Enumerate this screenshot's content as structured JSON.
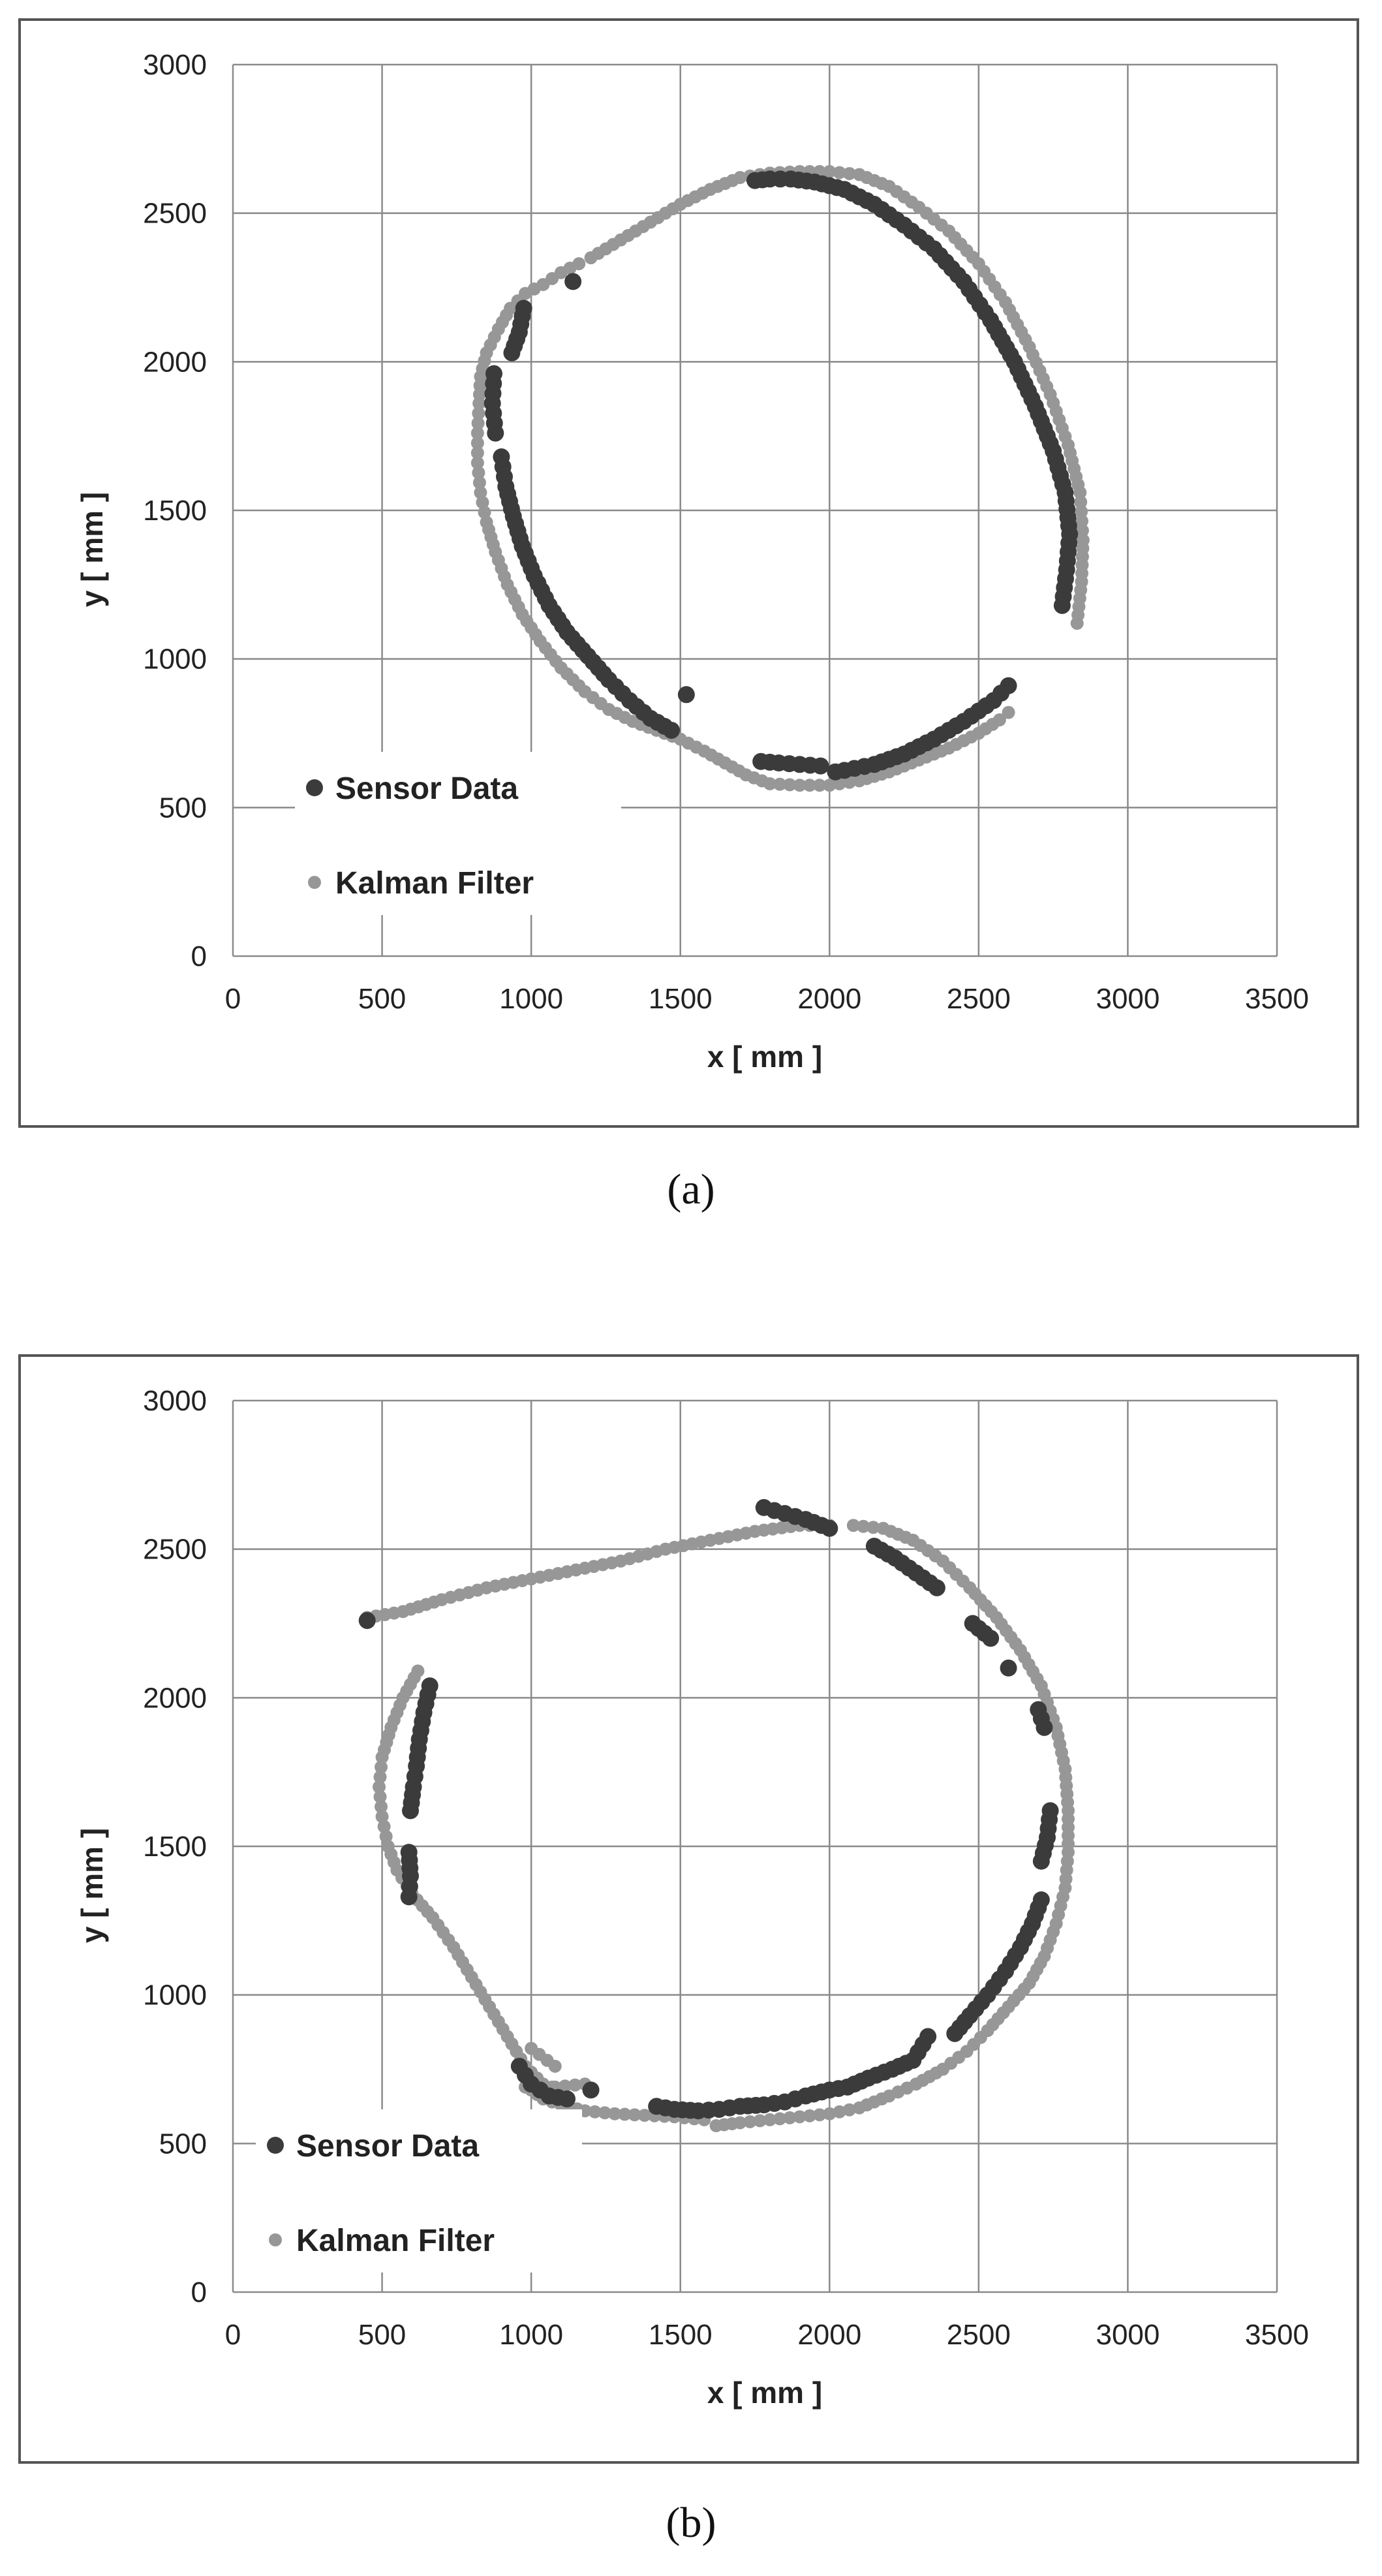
{
  "captions": {
    "a": "(a)",
    "b": "(b)"
  },
  "colors": {
    "sensor": "#3b3b3b",
    "kalman": "#979797",
    "grid": "#8a8a8a",
    "frame": "#555555"
  },
  "chart_data": [
    {
      "type": "scatter",
      "id": "a",
      "xlabel": "x [ mm ]",
      "ylabel": "y [ mm ]",
      "xlim": [
        0,
        3500
      ],
      "ylim": [
        0,
        3000
      ],
      "xticks": [
        0,
        500,
        1000,
        1500,
        2000,
        2500,
        3000,
        3500
      ],
      "yticks": [
        0,
        500,
        1000,
        1500,
        2000,
        2500,
        3000
      ],
      "grid": true,
      "legend": "bottom-left",
      "series": [
        {
          "name": "Sensor Data",
          "segments": [
            [
              [
                1750,
                2610
              ],
              [
                1800,
                2615
              ],
              [
                1870,
                2615
              ],
              [
                1950,
                2605
              ],
              [
                2050,
                2580
              ],
              [
                2150,
                2530
              ],
              [
                2250,
                2460
              ],
              [
                2350,
                2380
              ],
              [
                2450,
                2270
              ],
              [
                2540,
                2140
              ],
              [
                2620,
                2000
              ],
              [
                2690,
                1850
              ],
              [
                2750,
                1700
              ],
              [
                2790,
                1560
              ],
              [
                2805,
                1420
              ],
              [
                2795,
                1300
              ],
              [
                2780,
                1180
              ]
            ],
            [
              [
                2600,
                910
              ],
              [
                2550,
                860
              ],
              [
                2450,
                790
              ],
              [
                2350,
                730
              ],
              [
                2250,
                680
              ],
              [
                2150,
                645
              ],
              [
                2050,
                625
              ],
              [
                2020,
                620
              ]
            ],
            [
              [
                1970,
                640
              ],
              [
                1900,
                645
              ],
              [
                1830,
                650
              ],
              [
                1770,
                655
              ]
            ],
            [
              [
                1520,
                880
              ]
            ],
            [
              [
                1470,
                760
              ],
              [
                1400,
                800
              ],
              [
                1330,
                860
              ],
              [
                1260,
                930
              ],
              [
                1190,
                1010
              ],
              [
                1120,
                1090
              ],
              [
                1060,
                1180
              ],
              [
                1010,
                1280
              ],
              [
                970,
                1380
              ],
              [
                940,
                1480
              ],
              [
                915,
                1580
              ],
              [
                900,
                1680
              ]
            ],
            [
              [
                880,
                1760
              ],
              [
                870,
                1860
              ],
              [
                875,
                1960
              ]
            ],
            [
              [
                935,
                2030
              ],
              [
                960,
                2100
              ],
              [
                975,
                2180
              ]
            ],
            [
              [
                1140,
                2270
              ]
            ]
          ]
        },
        {
          "name": "Kalman Filter",
          "segments": [
            [
              [
                1160,
                2330
              ],
              [
                1100,
                2300
              ],
              [
                1040,
                2260
              ],
              [
                980,
                2230
              ],
              [
                930,
                2180
              ],
              [
                890,
                2110
              ],
              [
                850,
                2030
              ],
              [
                830,
                1950
              ],
              [
                825,
                1860
              ],
              [
                820,
                1760
              ],
              [
                820,
                1660
              ],
              [
                830,
                1560
              ],
              [
                850,
                1460
              ],
              [
                880,
                1360
              ],
              [
                920,
                1250
              ],
              [
                970,
                1150
              ],
              [
                1030,
                1060
              ],
              [
                1100,
                970
              ],
              [
                1180,
                890
              ],
              [
                1260,
                830
              ],
              [
                1340,
                790
              ],
              [
                1420,
                760
              ],
              [
                1500,
                730
              ],
              [
                1580,
                690
              ],
              [
                1650,
                650
              ],
              [
                1720,
                610
              ],
              [
                1800,
                580
              ],
              [
                1900,
                575
              ],
              [
                2000,
                575
              ],
              [
                2100,
                590
              ],
              [
                2200,
                620
              ],
              [
                2300,
                660
              ],
              [
                2400,
                700
              ],
              [
                2500,
                750
              ],
              [
                2570,
                795
              ],
              [
                2600,
                820
              ]
            ],
            [
              [
                1200,
                2350
              ],
              [
                1300,
                2410
              ],
              [
                1400,
                2470
              ],
              [
                1500,
                2530
              ],
              [
                1600,
                2580
              ],
              [
                1700,
                2620
              ],
              [
                1800,
                2635
              ],
              [
                1900,
                2640
              ],
              [
                2000,
                2640
              ],
              [
                2100,
                2630
              ],
              [
                2200,
                2590
              ],
              [
                2300,
                2520
              ],
              [
                2400,
                2440
              ],
              [
                2500,
                2330
              ],
              [
                2590,
                2200
              ],
              [
                2670,
                2050
              ],
              [
                2740,
                1890
              ],
              [
                2800,
                1720
              ],
              [
                2840,
                1560
              ],
              [
                2850,
                1400
              ],
              [
                2845,
                1260
              ],
              [
                2830,
                1120
              ]
            ]
          ]
        }
      ]
    },
    {
      "type": "scatter",
      "id": "b",
      "xlabel": "x [ mm ]",
      "ylabel": "y [ mm ]",
      "xlim": [
        0,
        3500
      ],
      "ylim": [
        0,
        3000
      ],
      "xticks": [
        0,
        500,
        1000,
        1500,
        2000,
        2500,
        3000,
        3500
      ],
      "yticks": [
        0,
        500,
        1000,
        1500,
        2000,
        2500,
        3000
      ],
      "grid": true,
      "legend": "bottom-left",
      "series": [
        {
          "name": "Sensor Data",
          "segments": [
            [
              [
                1780,
                2640
              ],
              [
                1850,
                2620
              ],
              [
                1920,
                2600
              ],
              [
                2000,
                2570
              ]
            ],
            [
              [
                2150,
                2510
              ],
              [
                2220,
                2470
              ],
              [
                2290,
                2420
              ],
              [
                2360,
                2370
              ]
            ],
            [
              [
                2480,
                2250
              ],
              [
                2540,
                2200
              ]
            ],
            [
              [
                2600,
                2100
              ]
            ],
            [
              [
                2700,
                1960
              ],
              [
                2720,
                1900
              ]
            ],
            [
              [
                2740,
                1620
              ],
              [
                2730,
                1530
              ],
              [
                2710,
                1450
              ]
            ],
            [
              [
                2710,
                1320
              ],
              [
                2680,
                1240
              ],
              [
                2640,
                1160
              ],
              [
                2590,
                1080
              ],
              [
                2530,
                1000
              ],
              [
                2470,
                930
              ],
              [
                2420,
                870
              ]
            ],
            [
              [
                2330,
                860
              ],
              [
                2280,
                780
              ],
              [
                2210,
                750
              ],
              [
                2130,
                720
              ],
              [
                2060,
                690
              ],
              [
                2000,
                680
              ],
              [
                1920,
                660
              ],
              [
                1850,
                640
              ],
              [
                1780,
                630
              ],
              [
                1700,
                625
              ],
              [
                1630,
                615
              ],
              [
                1560,
                610
              ],
              [
                1480,
                615
              ],
              [
                1420,
                625
              ]
            ],
            [
              [
                1200,
                680
              ]
            ],
            [
              [
                1120,
                650
              ],
              [
                1060,
                660
              ],
              [
                1000,
                700
              ],
              [
                960,
                760
              ]
            ],
            [
              [
                660,
                2040
              ],
              [
                640,
                1950
              ],
              [
                625,
                1860
              ],
              [
                615,
                1770
              ],
              [
                605,
                1700
              ],
              [
                595,
                1620
              ]
            ],
            [
              [
                590,
                1480
              ],
              [
                595,
                1400
              ],
              [
                590,
                1330
              ]
            ],
            [
              [
                450,
                2260
              ]
            ]
          ]
        },
        {
          "name": "Kalman Filter",
          "segments": [
            [
              [
                450,
                2270
              ],
              [
                570,
                2290
              ],
              [
                700,
                2330
              ],
              [
                850,
                2370
              ],
              [
                1000,
                2400
              ],
              [
                1150,
                2430
              ],
              [
                1300,
                2460
              ],
              [
                1450,
                2500
              ],
              [
                1600,
                2530
              ],
              [
                1750,
                2560
              ],
              [
                1900,
                2580
              ],
              [
                2000,
                2580
              ]
            ],
            [
              [
                2080,
                2580
              ],
              [
                2180,
                2570
              ],
              [
                2280,
                2530
              ],
              [
                2380,
                2460
              ],
              [
                2470,
                2370
              ],
              [
                2560,
                2270
              ],
              [
                2640,
                2160
              ],
              [
                2710,
                2040
              ],
              [
                2760,
                1900
              ],
              [
                2790,
                1760
              ],
              [
                2800,
                1620
              ],
              [
                2800,
                1480
              ],
              [
                2790,
                1360
              ],
              [
                2760,
                1240
              ],
              [
                2720,
                1130
              ],
              [
                2670,
                1040
              ],
              [
                2600,
                960
              ],
              [
                2530,
                880
              ],
              [
                2460,
                810
              ],
              [
                2380,
                750
              ],
              [
                2290,
                700
              ],
              [
                2200,
                660
              ],
              [
                2100,
                620
              ],
              [
                2000,
                600
              ],
              [
                1900,
                590
              ],
              [
                1800,
                580
              ],
              [
                1700,
                570
              ],
              [
                1620,
                560
              ]
            ],
            [
              [
                1580,
                580
              ],
              [
                1480,
                590
              ],
              [
                1380,
                595
              ],
              [
                1280,
                600
              ],
              [
                1180,
                610
              ],
              [
                1100,
                630
              ],
              [
                1040,
                650
              ],
              [
                1000,
                680
              ]
            ],
            [
              [
                980,
                690
              ],
              [
                1080,
                690
              ],
              [
                1180,
                700
              ]
            ],
            [
              [
                620,
                2090
              ],
              [
                570,
                2000
              ],
              [
                530,
                1900
              ],
              [
                500,
                1800
              ],
              [
                490,
                1700
              ],
              [
                500,
                1600
              ],
              [
                520,
                1500
              ],
              [
                550,
                1420
              ],
              [
                600,
                1340
              ],
              [
                670,
                1260
              ],
              [
                740,
                1160
              ],
              [
                800,
                1060
              ],
              [
                860,
                960
              ],
              [
                920,
                860
              ],
              [
                980,
                760
              ],
              [
                1040,
                700
              ],
              [
                1100,
                680
              ]
            ],
            [
              [
                1000,
                820
              ],
              [
                1080,
                760
              ]
            ]
          ]
        }
      ]
    }
  ]
}
